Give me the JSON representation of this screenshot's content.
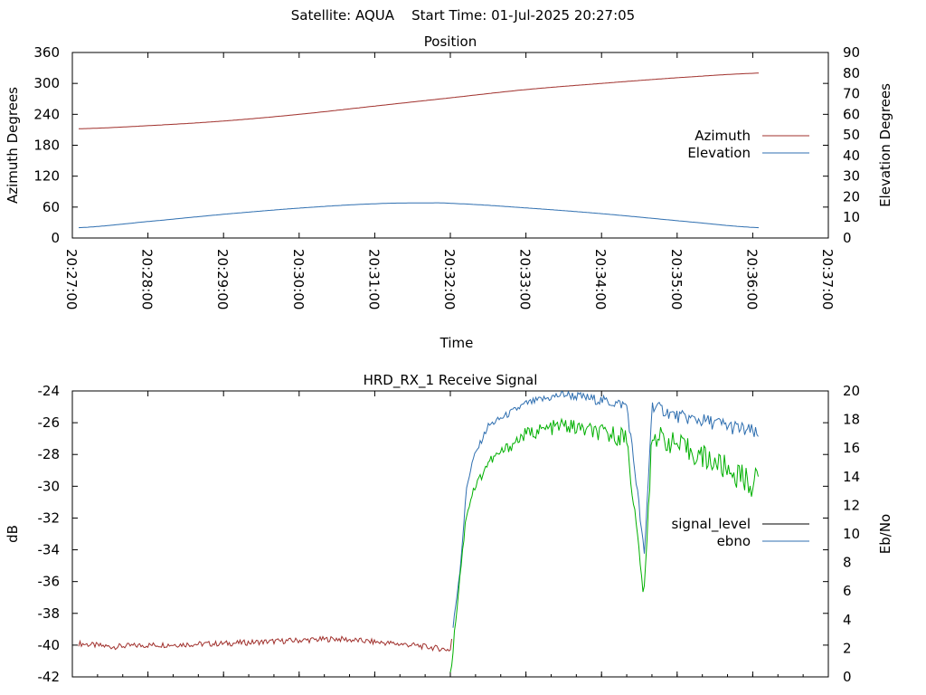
{
  "header": {
    "title": "Satellite: AQUA    Start Time: 01-Jul-2025 20:27:05"
  },
  "chart_data": [
    {
      "type": "line",
      "title": "Position",
      "xlabel": "Time",
      "ylabel": "Azimuth Degrees",
      "y2label": "Elevation Degrees",
      "ylim": [
        0,
        360
      ],
      "y2lim": [
        0,
        90
      ],
      "yticks": [
        "0",
        "60",
        "120",
        "180",
        "240",
        "300",
        "360"
      ],
      "y2ticks": [
        "0",
        "10",
        "20",
        "30",
        "40",
        "50",
        "60",
        "70",
        "80",
        "90"
      ],
      "xticks": [
        "20:27:00",
        "20:28:00",
        "20:29:00",
        "20:30:00",
        "20:31:00",
        "20:32:00",
        "20:33:00",
        "20:34:00",
        "20:35:00",
        "20:36:00",
        "20:37:00"
      ],
      "xlim": [
        "20:27:00",
        "20:37:00"
      ],
      "legend_position": "right",
      "grid": false,
      "series": [
        {
          "name": "Azimuth",
          "axis": "left",
          "color": "#a0302c",
          "x": [
            "20:27:05",
            "20:28:00",
            "20:29:00",
            "20:30:00",
            "20:31:00",
            "20:32:00",
            "20:33:00",
            "20:34:00",
            "20:35:00",
            "20:36:05"
          ],
          "values": [
            212,
            218,
            227,
            240,
            256,
            272,
            288,
            300,
            311,
            320
          ]
        },
        {
          "name": "Elevation",
          "axis": "right",
          "color": "#2f6fb0",
          "x": [
            "20:27:05",
            "20:28:00",
            "20:29:00",
            "20:30:00",
            "20:31:00",
            "20:31:40",
            "20:32:00",
            "20:33:00",
            "20:34:00",
            "20:35:00",
            "20:36:05"
          ],
          "values": [
            5,
            8,
            11.5,
            14.5,
            16.6,
            17,
            16.8,
            14.6,
            11.8,
            8.4,
            5
          ]
        }
      ]
    },
    {
      "type": "line",
      "title": "HRD_RX_1 Receive Signal",
      "xlabel": "",
      "ylabel": "dB",
      "y2label": "Eb/No",
      "ylim": [
        -42,
        -24
      ],
      "y2lim": [
        0,
        20
      ],
      "yticks": [
        "-42",
        "-40",
        "-38",
        "-36",
        "-34",
        "-32",
        "-30",
        "-28",
        "-26",
        "-24"
      ],
      "y2ticks": [
        "0",
        "2",
        "4",
        "6",
        "8",
        "10",
        "12",
        "14",
        "16",
        "18",
        "20"
      ],
      "xlim": [
        "20:27:00",
        "20:37:00"
      ],
      "legend_position": "right",
      "grid": false,
      "series": [
        {
          "name": "signal_level",
          "axis": "left",
          "legend_color": "#000000",
          "color": "#a0302c",
          "color_high": "#2f6fb0",
          "x": [
            "20:27:05",
            "20:27:30",
            "20:28:00",
            "20:29:00",
            "20:30:00",
            "20:30:30",
            "20:31:00",
            "20:31:30",
            "20:32:00",
            "20:32:08",
            "20:32:13",
            "20:32:18",
            "20:32:30",
            "20:33:00",
            "20:33:30",
            "20:34:00",
            "20:34:20",
            "20:34:28",
            "20:34:34",
            "20:34:40",
            "20:35:00",
            "20:35:30",
            "20:36:00",
            "20:36:05"
          ],
          "values": [
            -39.9,
            -40.1,
            -40.0,
            -39.9,
            -39.7,
            -39.6,
            -39.8,
            -40.0,
            -40.3,
            -35.0,
            -30.0,
            -28.3,
            -26.2,
            -24.8,
            -24.2,
            -24.6,
            -24.9,
            -30.0,
            -34.5,
            -24.9,
            -25.6,
            -26.0,
            -26.6,
            -27.0
          ]
        },
        {
          "name": "ebno",
          "axis": "right",
          "color": "#00b000",
          "legend_color": "#2f6fb0",
          "x": [
            "20:32:00",
            "20:32:08",
            "20:32:13",
            "20:32:18",
            "20:32:30",
            "20:33:00",
            "20:33:30",
            "20:34:00",
            "20:34:20",
            "20:34:28",
            "20:34:34",
            "20:34:40",
            "20:35:00",
            "20:35:30",
            "20:36:00",
            "20:36:05"
          ],
          "values": [
            0,
            7.5,
            11.5,
            13.0,
            15.0,
            17.0,
            17.6,
            17.0,
            16.8,
            10.0,
            5.6,
            17.0,
            16.2,
            15.0,
            13.5,
            13.8
          ]
        }
      ]
    }
  ]
}
